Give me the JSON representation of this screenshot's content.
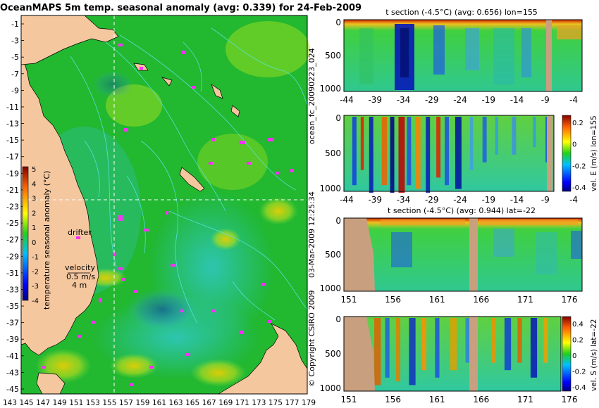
{
  "map": {
    "title": "OceanMAPS 5m temp. seasonal anomaly (avg: 0.339) for 24-Feb-2009",
    "y_ticks": [
      "-1",
      "-3",
      "-5",
      "-7",
      "-9",
      "-11",
      "-13",
      "-15",
      "-17",
      "-19",
      "-21",
      "-23",
      "-25",
      "-27",
      "-29",
      "-31",
      "-33",
      "-35",
      "-37",
      "-39",
      "-41",
      "-43",
      "-45"
    ],
    "x_ticks": [
      "143",
      "145",
      "147",
      "149",
      "151",
      "153",
      "155",
      "157",
      "159",
      "161",
      "163",
      "165",
      "167",
      "169",
      "171",
      "173",
      "175",
      "177",
      "179"
    ],
    "colorbar_label": "temperature seasonal anomaly (°C)",
    "colorbar_ticks": [
      "5",
      "4",
      "3",
      "2",
      "1",
      "0",
      "-1",
      "-2",
      "-3",
      "-4"
    ],
    "drifter_label": "drifter",
    "velocity_label": "velocity",
    "velocity_value": "0.5 m/s",
    "velocity_depth": "4 m",
    "colors": {
      "land": "#f5c79f",
      "ocean_base": "#22b830",
      "contour": "#57e6e6",
      "drifter": "#ff30ff",
      "crosshair": "#ffffff"
    }
  },
  "side_labels": {
    "run_id": "ocean_fc_20090223_024",
    "timestamp": "03-Mar-2009 12:25:34",
    "copyright": "© Copyright CSIRO 2009"
  },
  "panels": [
    {
      "title": "t section (-4.5°C) (avg: 0.656) lon=155",
      "x_ticks": [
        "-44",
        "-39",
        "-34",
        "-29",
        "-24",
        "-19",
        "-14",
        "-9",
        "-4"
      ],
      "y_ticks": [
        "0",
        "500",
        "1000"
      ],
      "colorbar": false,
      "cb_label": "",
      "cb_ticks": []
    },
    {
      "title": "",
      "x_ticks": [
        "-44",
        "-39",
        "-34",
        "-29",
        "-24",
        "-19",
        "-14",
        "-9",
        "-4"
      ],
      "y_ticks": [
        "0",
        "500",
        "1000"
      ],
      "colorbar": true,
      "cb_label": "vel. E (m/s) lon=155",
      "cb_ticks": [
        "0.2",
        "0",
        "-0.2",
        "-0.4"
      ]
    },
    {
      "title": "t section (-4.5°C) (avg: 0.944) lat=-22",
      "x_ticks": [
        "151",
        "156",
        "161",
        "166",
        "171",
        "176"
      ],
      "y_ticks": [
        "0",
        "500",
        "1000"
      ],
      "colorbar": false,
      "cb_label": "",
      "cb_ticks": []
    },
    {
      "title": "",
      "x_ticks": [
        "151",
        "156",
        "161",
        "166",
        "171",
        "176"
      ],
      "y_ticks": [
        "0",
        "500",
        "1000"
      ],
      "colorbar": true,
      "cb_label": "vel. S (m/s) lat=-22",
      "cb_ticks": [
        "0.4",
        "0.2",
        "0",
        "-0.2",
        "-0.4"
      ]
    }
  ],
  "chart_data": [
    {
      "type": "heatmap",
      "title": "OceanMAPS 5m temp. seasonal anomaly (avg: 0.339) for 24-Feb-2009",
      "xlim": [
        142,
        180
      ],
      "ylim": [
        -45,
        0
      ],
      "colorbar_range": [
        -4,
        5
      ],
      "colorbar_label": "temperature seasonal anomaly (°C)",
      "grid": false
    },
    {
      "type": "heatmap",
      "title": "t section (-4.5°C) (avg: 0.656) lon=155",
      "xlim": [
        -46,
        0
      ],
      "ylim": [
        1050,
        0
      ]
    },
    {
      "type": "heatmap",
      "title": "",
      "xlim": [
        -46,
        0
      ],
      "ylim": [
        1050,
        0
      ],
      "colorbar_range": [
        -0.4,
        0.3
      ],
      "colorbar_label": "vel. E (m/s) lon=155"
    },
    {
      "type": "heatmap",
      "title": "t section (-4.5°C) (avg: 0.944) lat=-22",
      "xlim": [
        149,
        181
      ],
      "ylim": [
        1050,
        0
      ]
    },
    {
      "type": "heatmap",
      "title": "",
      "xlim": [
        149,
        181
      ],
      "ylim": [
        1050,
        0
      ],
      "colorbar_range": [
        -0.4,
        0.45
      ],
      "colorbar_label": "vel. S (m/s) lat=-22"
    }
  ]
}
